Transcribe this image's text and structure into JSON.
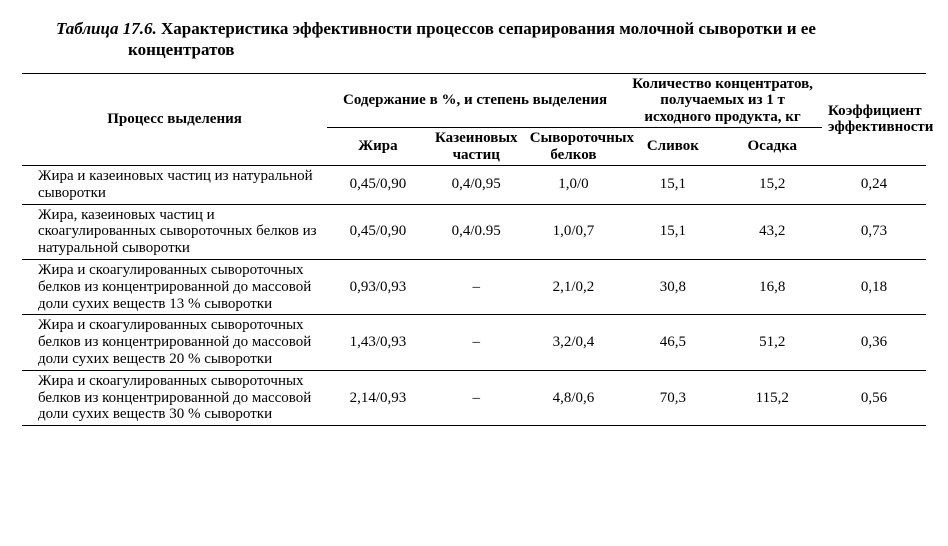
{
  "caption": {
    "label": "Таблица 17.6.",
    "title": "Характеристика эффективности процессов сепарирования молочной сыворотки и ее концентратов"
  },
  "headers": {
    "process": "Процесс выделения",
    "group1": "Содержание в %, и степень выделения",
    "group2": "Количество концентратов, получаемых из 1 т исходного продукта, кг",
    "coef": "Коэффициент эффективности",
    "fat": "Жира",
    "casein": "Казеиновых частиц",
    "wheyprot": "Сывороточных белков",
    "cream": "Сливок",
    "sediment": "Осадка"
  },
  "rows": [
    {
      "desc": "Жира и казеиновых частиц из натуральной сыворотки",
      "fat": "0,45/0,90",
      "casein": "0,4/0,95",
      "wheyprot": "1,0/0",
      "cream": "15,1",
      "sediment": "15,2",
      "coef": "0,24"
    },
    {
      "desc": "Жира, казеиновых частиц и скоагулированных сывороточных белков из натуральной сыворотки",
      "fat": "0,45/0,90",
      "casein": "0,4/0.95",
      "wheyprot": "1,0/0,7",
      "cream": "15,1",
      "sediment": "43,2",
      "coef": "0,73"
    },
    {
      "desc": "Жира и скоагулированных сывороточных белков из концентрированной до массовой доли сухих веществ 13 % сыворотки",
      "fat": "0,93/0,93",
      "casein": "–",
      "wheyprot": "2,1/0,2",
      "cream": "30,8",
      "sediment": "16,8",
      "coef": "0,18"
    },
    {
      "desc": "Жира и скоагулированных сывороточных белков из концентрированной до массовой доли сухих веществ 20 % сыворотки",
      "fat": "1,43/0,93",
      "casein": "–",
      "wheyprot": "3,2/0,4",
      "cream": "46,5",
      "sediment": "51,2",
      "coef": "0,36"
    },
    {
      "desc": "Жира и скоагулированных сывороточных белков из концентрированной до массовой доли сухих веществ 30 % сыворотки",
      "fat": "2,14/0,93",
      "casein": "–",
      "wheyprot": "4,8/0,6",
      "cream": "70,3",
      "sediment": "115,2",
      "coef": "0,56"
    }
  ]
}
